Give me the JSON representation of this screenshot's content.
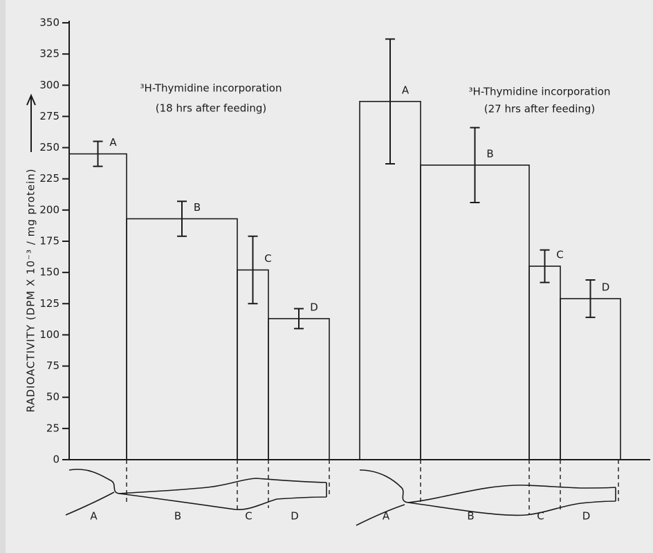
{
  "chart_data": {
    "type": "bar",
    "ylabel": "RADIOACTIVITY (DPM X 10⁻³ / mg protein)",
    "ylim": [
      0,
      350
    ],
    "yticks": [
      0,
      25,
      50,
      75,
      100,
      125,
      150,
      175,
      200,
      225,
      250,
      275,
      300,
      325,
      350
    ],
    "color": "none",
    "panels": [
      {
        "title": "³H-Thymidine incorporation",
        "subtitle": "(18 hrs after feeding)",
        "categories": [
          "A",
          "B",
          "C",
          "D"
        ],
        "values": [
          245,
          193,
          152,
          113
        ],
        "errors": [
          10,
          14,
          27,
          8
        ]
      },
      {
        "title": "³H-Thymidine incorporation",
        "subtitle": "(27 hrs after feeding)",
        "categories": [
          "A",
          "B",
          "C",
          "D"
        ],
        "values": [
          287,
          236,
          155,
          129
        ],
        "errors": [
          50,
          30,
          13,
          15
        ]
      }
    ]
  }
}
